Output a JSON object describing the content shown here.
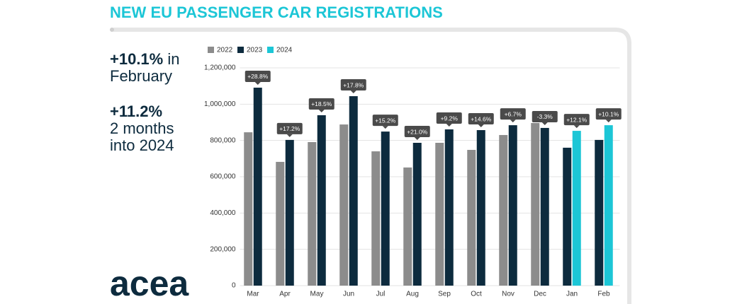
{
  "header": {
    "title": "NEW EU PASSENGER CAR REGISTRATIONS"
  },
  "highlights": [
    {
      "value": "+10.1%",
      "text": "in February"
    },
    {
      "value": "+11.2%",
      "text": "2 months into 2024"
    }
  ],
  "logo": "acea",
  "chart_data": {
    "type": "bar",
    "categories": [
      "Mar",
      "Apr",
      "May",
      "Jun",
      "Jul",
      "Aug",
      "Sep",
      "Oct",
      "Nov",
      "Dec",
      "Jan",
      "Feb"
    ],
    "series": [
      {
        "name": "2022",
        "color": "#8c8c8c",
        "values": [
          845000,
          682000,
          791000,
          888000,
          740000,
          651000,
          787000,
          748000,
          830000,
          896000,
          null,
          null
        ]
      },
      {
        "name": "2023",
        "color": "#0d2b3e",
        "values": [
          1091000,
          803000,
          939000,
          1044000,
          849000,
          787000,
          861000,
          857000,
          884000,
          869000,
          760000,
          803000
        ]
      },
      {
        "name": "2024",
        "color": "#1cc6d6",
        "values": [
          null,
          null,
          null,
          null,
          null,
          null,
          null,
          null,
          null,
          null,
          853000,
          884000
        ]
      }
    ],
    "change_labels": [
      "+28.8%",
      "+17.2%",
      "+18.5%",
      "+17.8%",
      "+15.2%",
      "+21.0%",
      "+9.2%",
      "+14.6%",
      "+6.7%",
      "-3.3%",
      "+12.1%",
      "+10.1%"
    ],
    "ylim": [
      0,
      1200000
    ],
    "yticks": [
      0,
      {
        "value": 200000,
        "label": "200,000"
      },
      {
        "value": 400000,
        "label": "400,000"
      },
      {
        "value": 600000,
        "label": "600,000"
      },
      {
        "value": 800000,
        "label": "800,000"
      },
      {
        "value": 1000000,
        "label": "1,000,000"
      },
      {
        "value": 1200000,
        "label": "1,200,000"
      }
    ],
    "grid": true
  }
}
